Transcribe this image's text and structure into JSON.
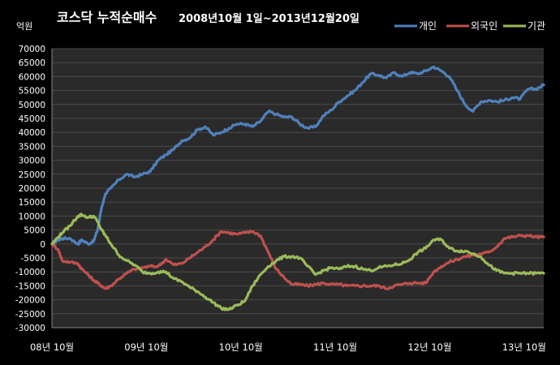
{
  "chart_data": {
    "type": "line",
    "title": "코스닥 누적순매수",
    "subtitle": "2008년10월 1일~2013년12월20일",
    "ylabel": "억원",
    "ylim": [
      -30000,
      70000
    ],
    "yticks": [
      70000,
      65000,
      60000,
      55000,
      50000,
      45000,
      40000,
      35000,
      30000,
      25000,
      20000,
      15000,
      10000,
      5000,
      0,
      -5000,
      -10000,
      -15000,
      -20000,
      -25000,
      -30000
    ],
    "x_tick_labels": [
      "08년 10월",
      "09년 10월",
      "10년 10월",
      "11년 10월",
      "12년 10월",
      "13년 10월"
    ],
    "grid": true,
    "legend_position": "top-right",
    "series": [
      {
        "name": "개인",
        "color": "#4f81bd",
        "x": [
          0,
          0.8,
          1.3,
          2.3,
          3.3,
          3.8,
          4.6,
          5.3,
          5.8,
          6.3,
          6.8,
          7.5,
          8.5,
          9.5,
          10.5,
          11.5,
          12.5,
          13.5,
          14.5,
          15.5,
          16.5,
          17.5,
          18.5,
          19.5,
          20.5,
          21.5,
          22.5,
          23.5,
          24.5,
          25.5,
          26.5,
          27.5,
          28.5,
          29.5,
          30.5,
          31.5,
          32.5,
          33.5,
          34.5,
          35.5,
          36.5,
          37.5,
          38.5,
          39.5,
          40.5,
          41.5,
          42.5,
          43.5,
          44.5,
          45.5,
          46.5,
          47.5,
          48.5,
          49.5,
          50.5,
          51.5,
          52.5,
          53.5,
          54.5,
          55.5,
          56.5,
          57.5,
          58.5,
          59.5,
          60.5,
          61.5,
          62.5
        ],
        "y": [
          0,
          1500,
          2000,
          2000,
          0,
          1500,
          0,
          1000,
          5000,
          13000,
          18000,
          20000,
          23000,
          25000,
          24000,
          25000,
          26000,
          30000,
          32000,
          34000,
          37000,
          38000,
          41000,
          42000,
          39000,
          40000,
          41500,
          43000,
          43000,
          42000,
          44000,
          47500,
          46500,
          45500,
          45500,
          43000,
          41500,
          42000,
          46000,
          48000,
          51000,
          53000,
          55000,
          58000,
          61000,
          60500,
          59500,
          61500,
          60000,
          61500,
          61000,
          62000,
          63500,
          62000,
          60000,
          55000,
          50000,
          47500,
          51000,
          51500,
          51000,
          51500,
          52500,
          52000,
          55500,
          55500,
          57000
        ]
      },
      {
        "name": "외국인",
        "color": "#c0504d",
        "x": [
          0,
          0.8,
          1.3,
          2.3,
          3.3,
          3.8,
          4.6,
          5.3,
          5.8,
          6.3,
          6.8,
          7.5,
          8.5,
          9.5,
          10.5,
          11.5,
          12.5,
          13.5,
          14.5,
          15.5,
          16.5,
          17.5,
          18.5,
          19.5,
          20.5,
          21.5,
          22.5,
          23.5,
          24.5,
          25.5,
          26.5,
          27.5,
          28.5,
          29.5,
          30.5,
          31.5,
          32.5,
          33.5,
          34.5,
          35.5,
          36.5,
          37.5,
          38.5,
          39.5,
          40.5,
          41.5,
          42.5,
          43.5,
          44.5,
          45.5,
          46.5,
          47.5,
          48.5,
          49.5,
          50.5,
          51.5,
          52.5,
          53.5,
          54.5,
          55.5,
          56.5,
          57.5,
          58.5,
          59.5,
          60.5,
          61.5,
          62.5
        ],
        "y": [
          0,
          -2000,
          -6000,
          -6500,
          -7000,
          -9000,
          -11000,
          -13000,
          -14000,
          -15000,
          -16000,
          -15000,
          -12500,
          -10500,
          -9000,
          -8500,
          -8000,
          -8000,
          -5500,
          -7500,
          -7000,
          -5000,
          -3000,
          -1000,
          1500,
          4500,
          4000,
          3500,
          4000,
          4500,
          3000,
          -3000,
          -9000,
          -12000,
          -14500,
          -14500,
          -15000,
          -14500,
          -14000,
          -14500,
          -14500,
          -15000,
          -15000,
          -15000,
          -15000,
          -15000,
          -16000,
          -15000,
          -14500,
          -14000,
          -14000,
          -14000,
          -10000,
          -8000,
          -6500,
          -5500,
          -4500,
          -4000,
          -3500,
          -3000,
          -1000,
          2000,
          2500,
          3000,
          3000,
          2500,
          2500
        ]
      },
      {
        "name": "기관",
        "color": "#9bbb59",
        "x": [
          0,
          0.8,
          1.3,
          2.3,
          3.3,
          3.8,
          4.6,
          5.3,
          5.8,
          6.3,
          6.8,
          7.5,
          8.5,
          9.5,
          10.5,
          11.5,
          12.5,
          13.5,
          14.5,
          15.5,
          16.5,
          17.5,
          18.5,
          19.5,
          20.5,
          21.5,
          22.5,
          23.5,
          24.5,
          25.5,
          26.5,
          27.5,
          28.5,
          29.5,
          30.5,
          31.5,
          32.5,
          33.5,
          34.5,
          35.5,
          36.5,
          37.5,
          38.5,
          39.5,
          40.5,
          41.5,
          42.5,
          43.5,
          44.5,
          45.5,
          46.5,
          47.5,
          48.5,
          49.5,
          50.5,
          51.5,
          52.5,
          53.5,
          54.5,
          55.5,
          56.5,
          57.5,
          58.5,
          59.5,
          60.5,
          61.5,
          62.5
        ],
        "y": [
          0,
          2500,
          4000,
          6500,
          10000,
          10500,
          9500,
          10000,
          8000,
          5000,
          3000,
          0,
          -4000,
          -6000,
          -7500,
          -10000,
          -10500,
          -10000,
          -10000,
          -12500,
          -13500,
          -15500,
          -17000,
          -19000,
          -21000,
          -23000,
          -23500,
          -22000,
          -20500,
          -15000,
          -11000,
          -8000,
          -6000,
          -4500,
          -4500,
          -5000,
          -8000,
          -11000,
          -9500,
          -8500,
          -9000,
          -8000,
          -8000,
          -9000,
          -9500,
          -8500,
          -8000,
          -7500,
          -7000,
          -5500,
          -3000,
          -1500,
          1500,
          1500,
          -1500,
          -2500,
          -2500,
          -3500,
          -4500,
          -7500,
          -9500,
          -10500,
          -10500,
          -10500,
          -10500,
          -10500,
          -10500
        ]
      }
    ]
  }
}
